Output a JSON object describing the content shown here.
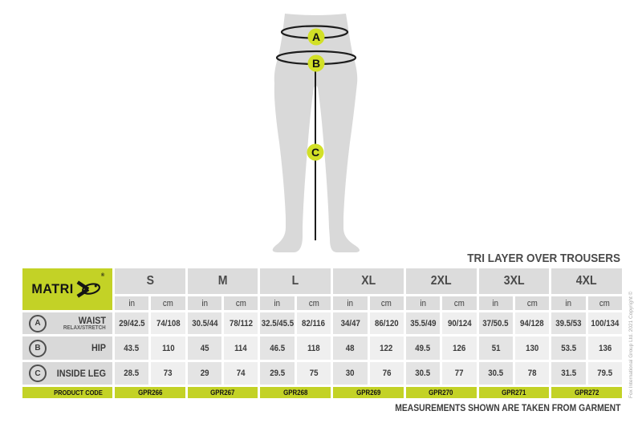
{
  "title": "TRI LAYER OVER TROUSERS",
  "footnote": "MEASUREMENTS SHOWN ARE TAKEN FROM GARMENT",
  "copyright": "Fox International Group Ltd. 2021 Copyright ©",
  "brand": {
    "name": "MATRIX",
    "wordmark_prefix": "MATRI",
    "registered": "®"
  },
  "diagram": {
    "description": "trousers silhouette with measurement points",
    "markers": [
      {
        "id": "A",
        "label": "A",
        "measures": "waist"
      },
      {
        "id": "B",
        "label": "B",
        "measures": "hip"
      },
      {
        "id": "C",
        "label": "C",
        "measures": "inside leg"
      }
    ]
  },
  "colors": {
    "accent_lime": "#c3d226",
    "marker_lime": "#d2e026",
    "silhouette_gray": "#d9d9d9",
    "header_gray": "#dcdcdc",
    "label_gray": "#d9d9d9",
    "in_cell": "#e4e4e4",
    "cm_cell": "#efefef",
    "text_dark": "#3c3c3c"
  },
  "table": {
    "sizes": [
      "S",
      "M",
      "L",
      "XL",
      "2XL",
      "3XL",
      "4XL"
    ],
    "units": [
      "in",
      "cm"
    ],
    "rows": [
      {
        "marker": "A",
        "label": "WAIST",
        "sublabel": "RELAX/STRETCH",
        "values_in": [
          "29/42.5",
          "30.5/44",
          "32.5/45.5",
          "34/47",
          "35.5/49",
          "37/50.5",
          "39.5/53"
        ],
        "values_cm": [
          "74/108",
          "78/112",
          "82/116",
          "86/120",
          "90/124",
          "94/128",
          "100/134"
        ]
      },
      {
        "marker": "B",
        "label": "HIP",
        "sublabel": "",
        "values_in": [
          "43.5",
          "45",
          "46.5",
          "48",
          "49.5",
          "51",
          "53.5"
        ],
        "values_cm": [
          "110",
          "114",
          "118",
          "122",
          "126",
          "130",
          "136"
        ]
      },
      {
        "marker": "C",
        "label": "INSIDE LEG",
        "sublabel": "",
        "values_in": [
          "28.5",
          "29",
          "29.5",
          "30",
          "30.5",
          "30.5",
          "31.5"
        ],
        "values_cm": [
          "73",
          "74",
          "75",
          "76",
          "77",
          "78",
          "79.5"
        ]
      }
    ],
    "product_code_label": "PRODUCT CODE",
    "product_codes": [
      "GPR266",
      "GPR267",
      "GPR268",
      "GPR269",
      "GPR270",
      "GPR271",
      "GPR272"
    ]
  }
}
